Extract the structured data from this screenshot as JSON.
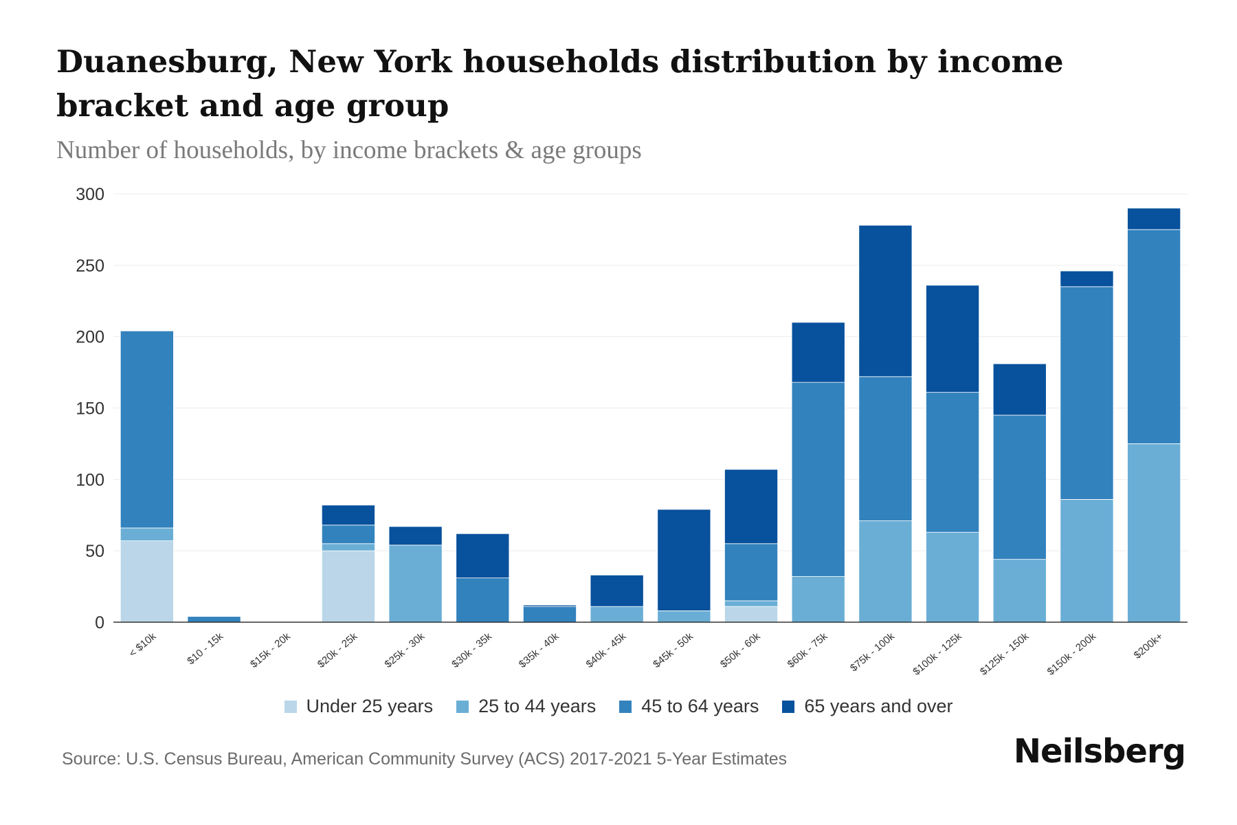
{
  "header": {
    "title": "Duanesburg, New York households distribution by income bracket and age group",
    "subtitle": "Number of households, by income brackets & age groups"
  },
  "footer": {
    "source": "Source: U.S. Census Bureau, American Community Survey (ACS) 2017-2021 5-Year Estimates",
    "brand": "Neilsberg"
  },
  "colors": {
    "under_25": "#bad6e8",
    "age_25_44": "#6aaed6",
    "age_45_64": "#3282bd",
    "age_65_over": "#08519c"
  },
  "chart_data": {
    "type": "bar",
    "stacked": true,
    "title": "Duanesburg, New York households distribution by income bracket and age group",
    "subtitle": "Number of households, by income brackets & age groups",
    "xlabel": "",
    "ylabel": "",
    "ylim": [
      0,
      300
    ],
    "yticks": [
      0,
      50,
      100,
      150,
      200,
      250,
      300
    ],
    "grid": true,
    "legend_position": "bottom",
    "categories": [
      "< $10k",
      "$10 - 15k",
      "$15k - 20k",
      "$20k - 25k",
      "$25k - 30k",
      "$30k - 35k",
      "$35k - 40k",
      "$40k - 45k",
      "$45k - 50k",
      "$50k - 60k",
      "$60k - 75k",
      "$75k - 100k",
      "$100k - 125k",
      "$125k - 150k",
      "$150k - 200k",
      "$200k+"
    ],
    "series": [
      {
        "name": "Under 25 years",
        "color": "#bad6e8",
        "values": [
          57,
          0,
          0,
          50,
          0,
          0,
          0,
          0,
          0,
          11,
          0,
          0,
          0,
          0,
          0,
          0
        ]
      },
      {
        "name": "25 to 44 years",
        "color": "#6aaed6",
        "values": [
          9,
          0,
          0,
          5,
          54,
          0,
          0,
          11,
          8,
          4,
          32,
          71,
          63,
          44,
          86,
          125
        ]
      },
      {
        "name": "45 to 64 years",
        "color": "#3282bd",
        "values": [
          138,
          4,
          0,
          13,
          0,
          31,
          11,
          0,
          0,
          40,
          136,
          101,
          98,
          101,
          149,
          150
        ]
      },
      {
        "name": "65 years and over",
        "color": "#08519c",
        "values": [
          0,
          0,
          0,
          14,
          13,
          31,
          1,
          22,
          71,
          52,
          42,
          106,
          75,
          36,
          11,
          15
        ]
      }
    ]
  }
}
